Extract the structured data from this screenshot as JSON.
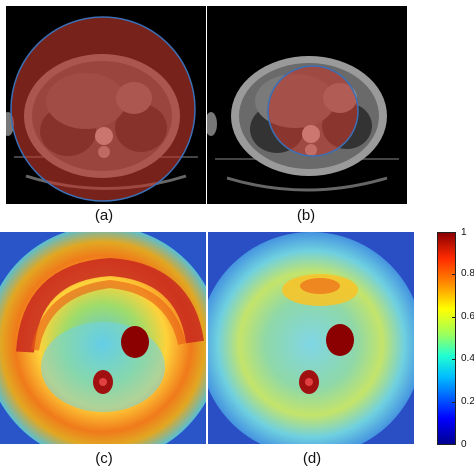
{
  "figure": {
    "panels": [
      {
        "id": "a",
        "label": "(a)"
      },
      {
        "id": "b",
        "label": "(b)"
      },
      {
        "id": "c",
        "label": "(c)"
      },
      {
        "id": "d",
        "label": "(d)"
      }
    ],
    "colorbar": {
      "colormap": "jet",
      "range": [
        0,
        1
      ],
      "ticks": [
        "0",
        "0.2",
        "0.4",
        "0.6",
        "0.8",
        "1"
      ]
    },
    "colors": {
      "overlay_fill": "#c0392b",
      "overlay_outline": "#3b6fb6",
      "ct_background": "#000000"
    }
  }
}
